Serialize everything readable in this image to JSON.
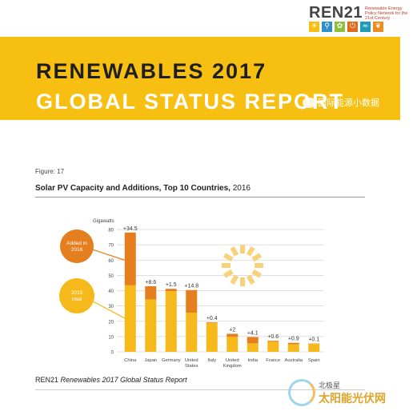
{
  "header": {
    "logo_word": "REN21",
    "logo_tagline": "Renewable Energy Policy Network for the 21st Century",
    "logo_icons": [
      {
        "name": "sun-icon",
        "glyph": "☀",
        "color": "#f6bf12"
      },
      {
        "name": "wind-icon",
        "glyph": "⚲",
        "color": "#2e8fc9"
      },
      {
        "name": "bio-icon",
        "glyph": "✿",
        "color": "#8bbf3c"
      },
      {
        "name": "power-icon",
        "glyph": "⏻",
        "color": "#e06a1b"
      },
      {
        "name": "wave-icon",
        "glyph": "≈",
        "color": "#1f9bb8"
      },
      {
        "name": "leaf-icon",
        "glyph": "❦",
        "color": "#f08a1d"
      }
    ],
    "title_line1": "RENEWABLES 2017",
    "title_line2": "GLOBAL STATUS REPORT",
    "watermark_text": "国际能源小数据"
  },
  "figure": {
    "label": "Figure: 17",
    "title_bold": "Solar PV Capacity and Additions, Top 10 Countries,",
    "title_year": " 2016"
  },
  "footer": {
    "org": "REN21",
    "report": "Renewables 2017 Global Status Report"
  },
  "watermark_bottom": {
    "line1": "北极星",
    "line2": "太阳能光伏网"
  },
  "colors": {
    "base": "#f5b91b",
    "added": "#e57e1e",
    "grid": "#d4d4d4",
    "sunburst": "#f7d27a"
  },
  "chart_data": {
    "type": "bar",
    "stacked": true,
    "ylabel": "Gigawatts",
    "ylim": [
      0,
      80
    ],
    "yticks": [
      0,
      10,
      20,
      30,
      40,
      50,
      60,
      70,
      80
    ],
    "categories": [
      "China",
      "Japan",
      "Germany",
      "United States",
      "Italy",
      "United Kingdom",
      "India",
      "France",
      "Australia",
      "Spain"
    ],
    "series": [
      {
        "name": "2015 total",
        "values": [
          43.5,
          34.3,
          39.7,
          25.6,
          18.9,
          9.8,
          5.6,
          6.6,
          5.0,
          5.4
        ]
      },
      {
        "name": "Added in 2016",
        "values": [
          34.5,
          8.6,
          1.5,
          14.8,
          0.4,
          2.0,
          4.1,
          0.6,
          0.9,
          0.1
        ]
      }
    ],
    "data_labels": [
      "+34.5",
      "+8.6",
      "+1.5",
      "+14.8",
      "+0.4",
      "+2",
      "+4.1",
      "+0.6",
      "+0.9",
      "+0.1"
    ],
    "legend": [
      {
        "text": "Added in 2016",
        "color": "#e57e1e"
      },
      {
        "text": "2015 total",
        "color": "#f5b91b"
      }
    ],
    "grid": true
  }
}
